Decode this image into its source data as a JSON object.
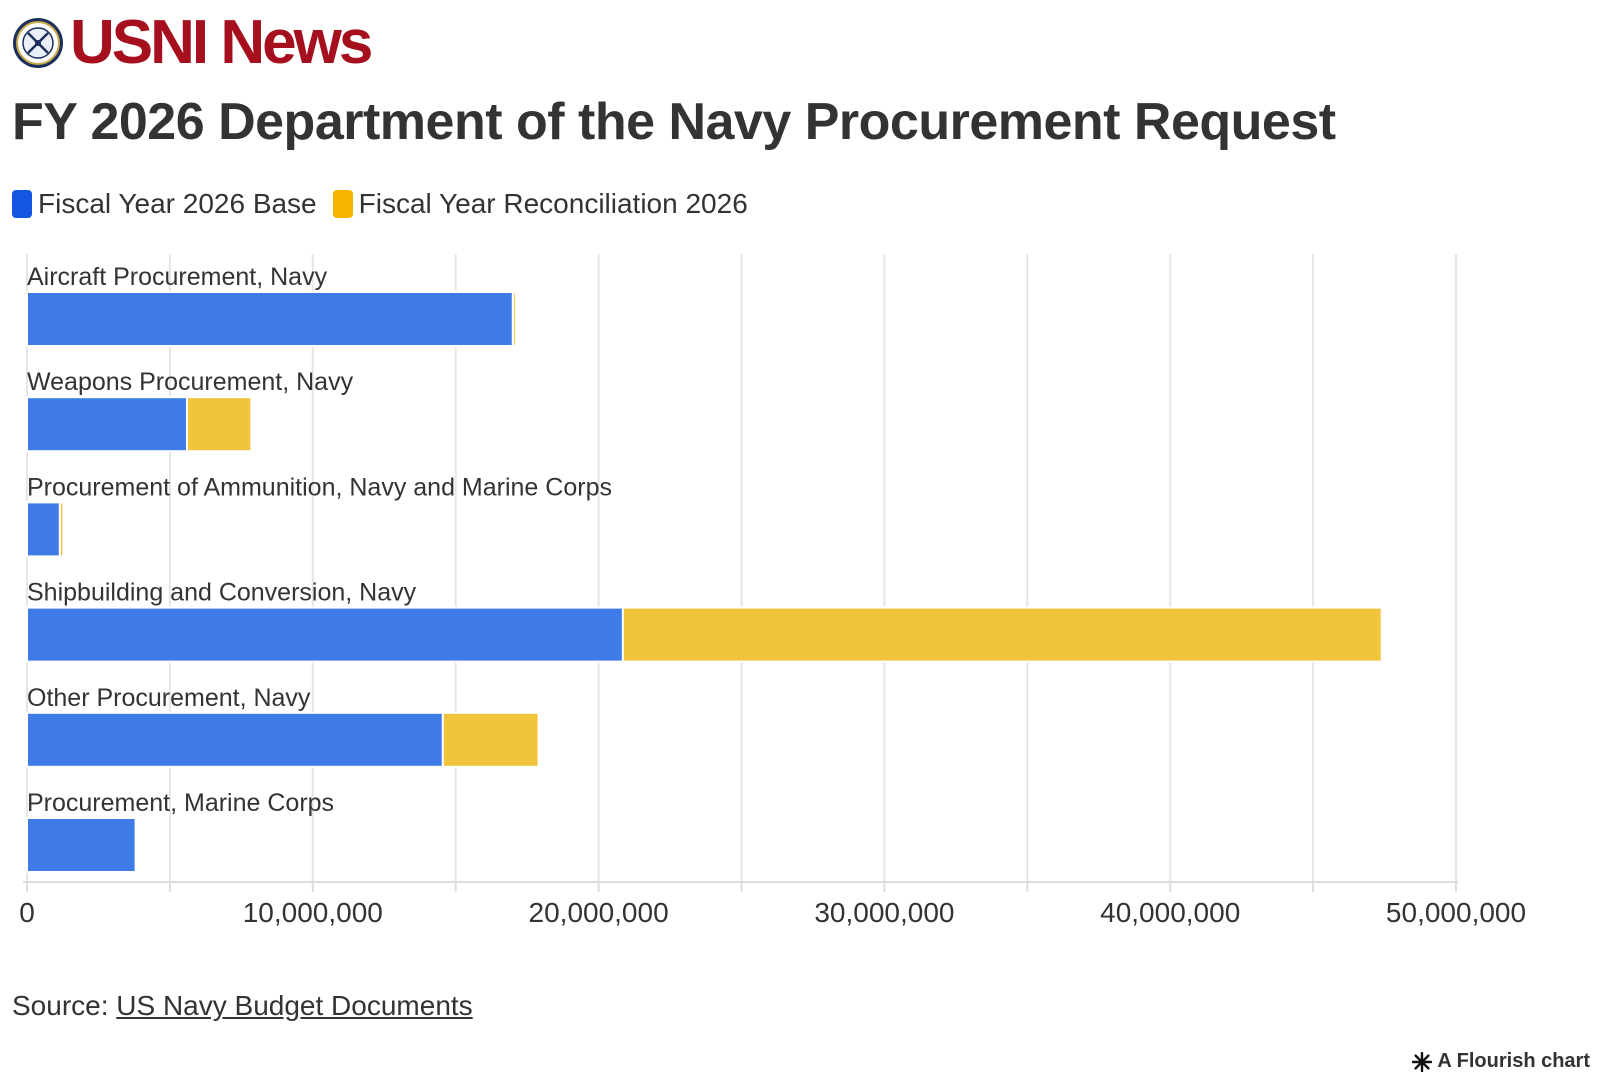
{
  "brand": {
    "logo_text": "USNI News",
    "logo_color": "#a50f1e",
    "seal_icon": "naval-institute-seal-icon"
  },
  "colors": {
    "base": "#3f7be6",
    "reconciliation": "#f2c43b",
    "legend_base": "#1456e0",
    "legend_reconciliation": "#f4b400",
    "grid": "#e6e6e6",
    "text": "#333333"
  },
  "chart_data": {
    "type": "bar",
    "orientation": "horizontal",
    "stacked": true,
    "title": "FY 2026 Department of the Navy Procurement Request",
    "categories": [
      "Aircraft Procurement, Navy",
      "Weapons Procurement, Navy",
      "Procurement of Ammunition, Navy and Marine Corps",
      "Shipbuilding and Conversion, Navy",
      "Other Procurement, Navy",
      "Procurement, Marine Corps"
    ],
    "series": [
      {
        "name": "Fiscal Year 2026 Base",
        "values": [
          17000000,
          5600000,
          1150000,
          20850000,
          14550000,
          3800000
        ]
      },
      {
        "name": "Fiscal Year Reconciliation 2026",
        "values": [
          100000,
          2250000,
          120000,
          26550000,
          3350000,
          0
        ]
      }
    ],
    "xlim": [
      0,
      50000000
    ],
    "x_ticks": [
      0,
      10000000,
      20000000,
      30000000,
      40000000,
      50000000
    ],
    "x_tick_labels": [
      "0",
      "10,000,000",
      "20,000,000",
      "30,000,000",
      "40,000,000",
      "50,000,000"
    ],
    "xlabel": "",
    "ylabel": "",
    "grid": true,
    "legend_position": "top-left"
  },
  "source": {
    "prefix": "Source:",
    "link_text": "US Navy Budget Documents"
  },
  "credit": {
    "text": "A Flourish chart",
    "icon": "flourish-asterisk-icon"
  }
}
